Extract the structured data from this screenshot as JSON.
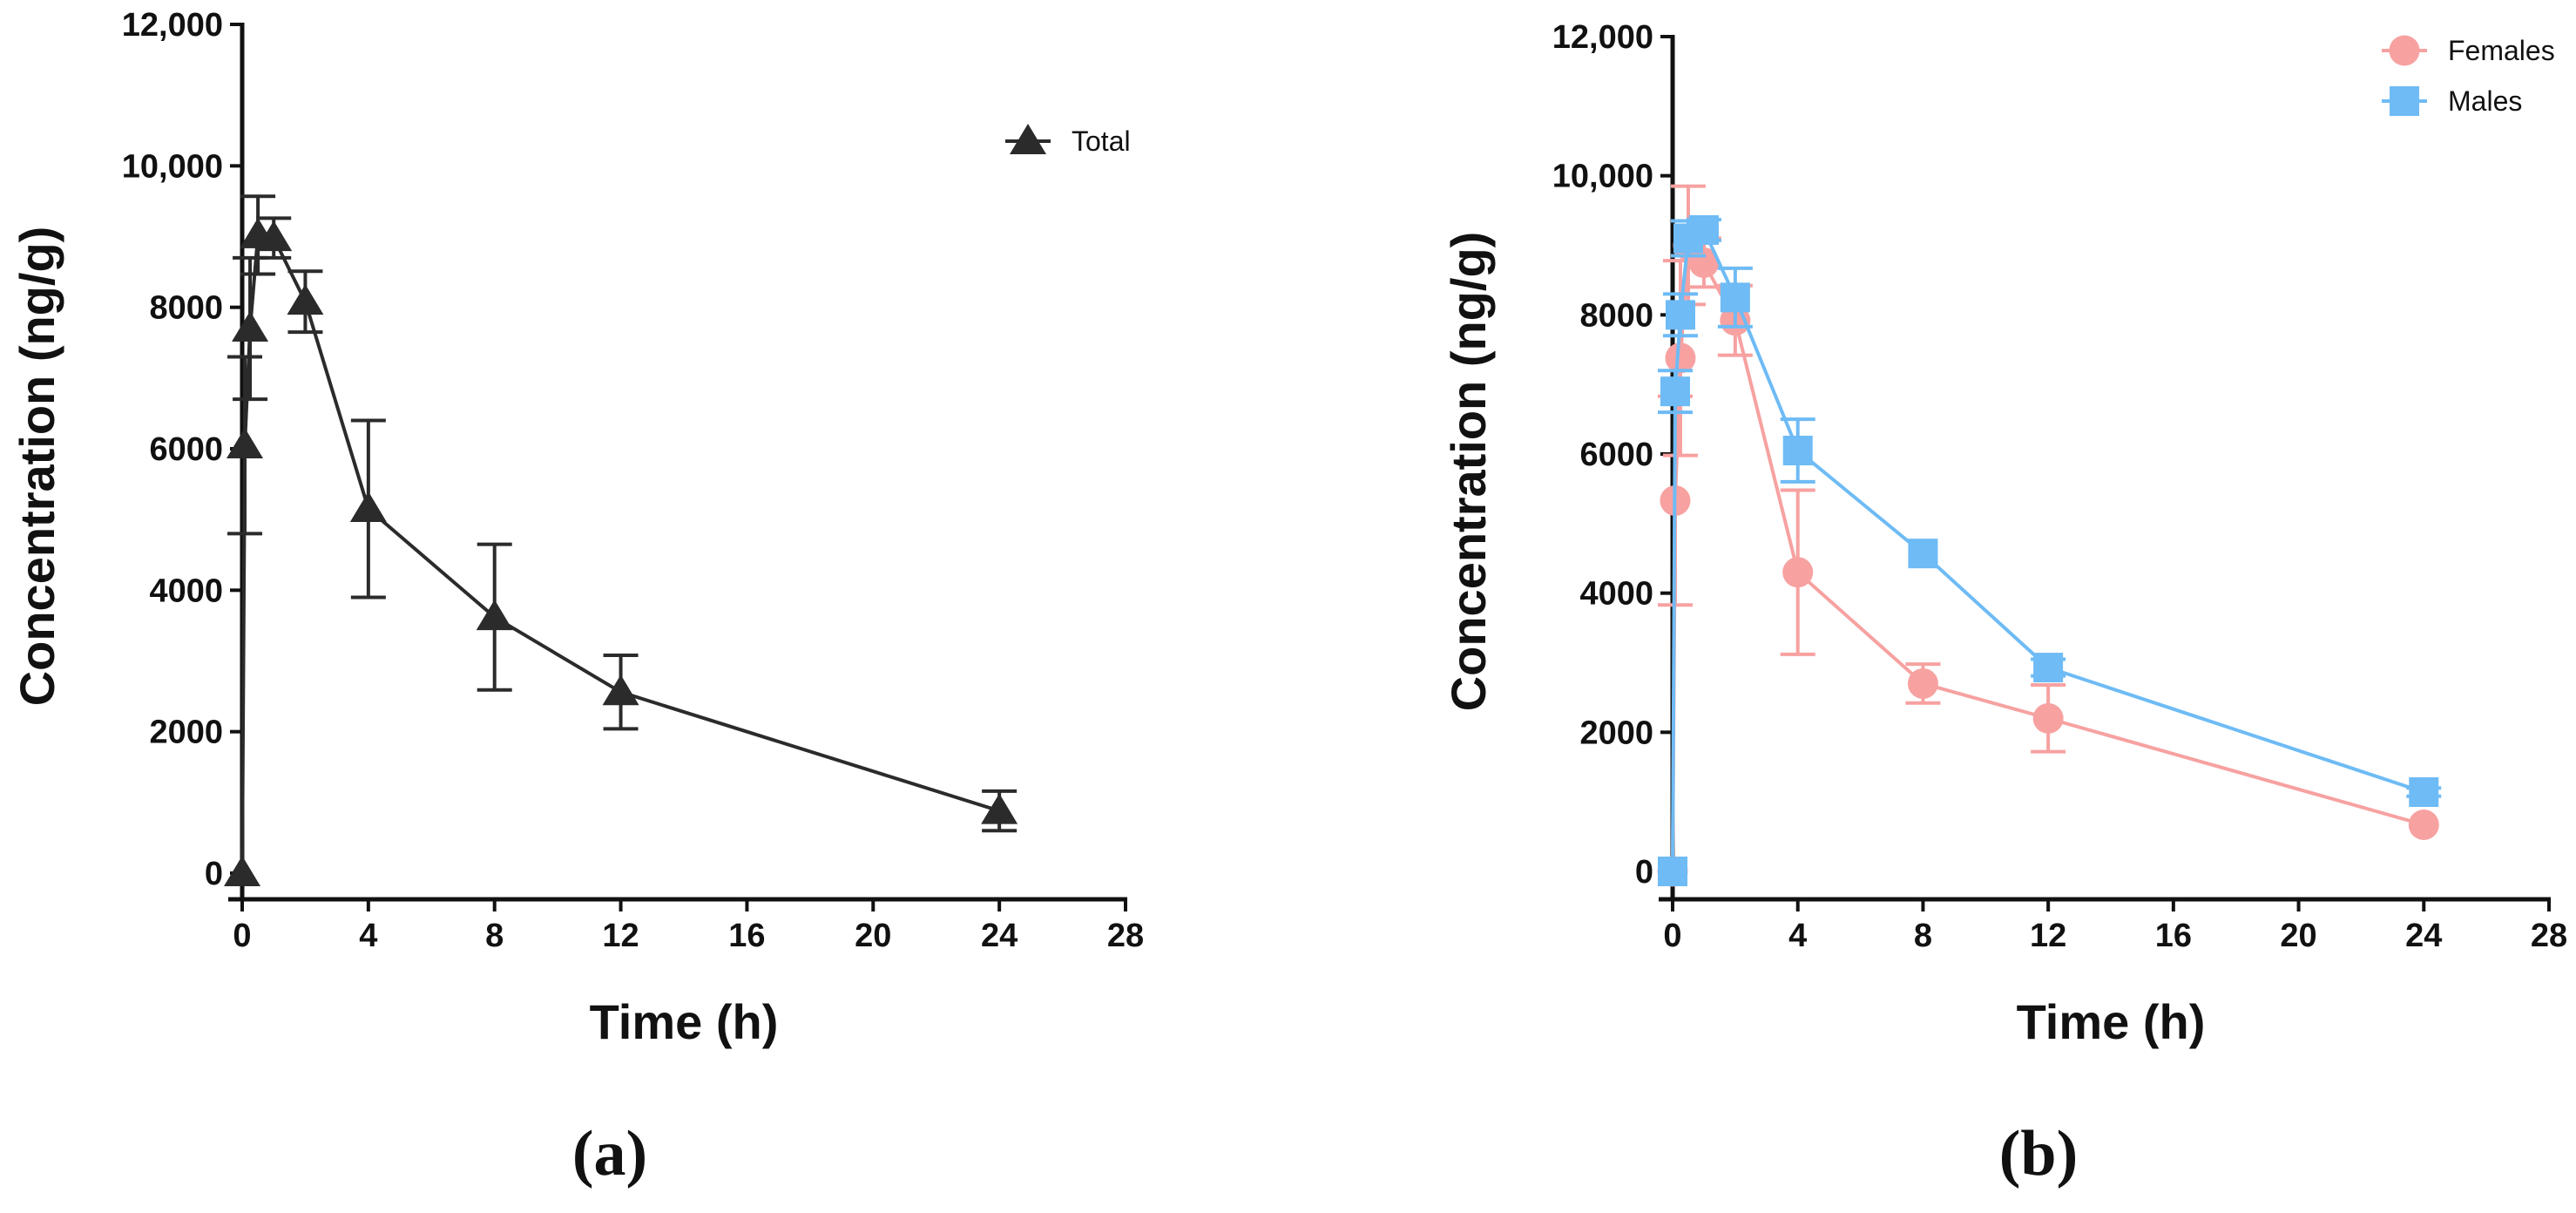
{
  "figure": {
    "panel_labels": [
      "(a)",
      "(b)"
    ]
  },
  "chart_data": [
    {
      "type": "line",
      "panel": "(a)",
      "title": "",
      "xlabel": "Time (h)",
      "ylabel": "Concentration (ng/g)",
      "xlim": [
        0,
        28
      ],
      "ylim": [
        0,
        12000
      ],
      "xticks": [
        0,
        4,
        8,
        12,
        16,
        20,
        24,
        28
      ],
      "xtick_labels": [
        "0",
        "4",
        "8",
        "12",
        "16",
        "20",
        "24",
        "28"
      ],
      "yticks": [
        0,
        2000,
        4000,
        6000,
        8000,
        10000,
        12000
      ],
      "ytick_labels": [
        "0",
        "2000",
        "4000",
        "6000",
        "8000",
        "10,000",
        "12,000"
      ],
      "grid": false,
      "legend_position": "top-right",
      "series": [
        {
          "name": "Total",
          "marker": "triangle",
          "color": "#2b2b2b",
          "x": [
            0,
            0.083,
            0.25,
            0.5,
            1,
            2,
            4,
            8,
            12,
            24
          ],
          "y": [
            0,
            6050,
            7700,
            9020,
            8980,
            8080,
            5150,
            3620,
            2560,
            880
          ],
          "err": [
            0,
            1250,
            1000,
            550,
            280,
            430,
            1250,
            1030,
            520,
            280
          ]
        }
      ]
    },
    {
      "type": "line",
      "panel": "(b)",
      "title": "",
      "xlabel": "Time (h)",
      "ylabel": "Concentration (ng/g)",
      "xlim": [
        0,
        28
      ],
      "ylim": [
        0,
        12000
      ],
      "xticks": [
        0,
        4,
        8,
        12,
        16,
        20,
        24,
        28
      ],
      "xtick_labels": [
        "0",
        "4",
        "8",
        "12",
        "16",
        "20",
        "24",
        "28"
      ],
      "yticks": [
        0,
        2000,
        4000,
        6000,
        8000,
        10000,
        12000
      ],
      "ytick_labels": [
        "0",
        "2000",
        "4000",
        "6000",
        "8000",
        "10,000",
        "12,000"
      ],
      "grid": false,
      "legend_position": "top-right",
      "series": [
        {
          "name": "Females",
          "marker": "circle",
          "color": "#f7a1a1",
          "x": [
            0,
            0.083,
            0.25,
            0.5,
            1,
            2,
            4,
            8,
            12,
            24
          ],
          "y": [
            0,
            5330,
            7380,
            9000,
            8750,
            7920,
            4300,
            2700,
            2200,
            670
          ],
          "err": [
            0,
            1500,
            1400,
            850,
            350,
            500,
            1180,
            280,
            480,
            0
          ]
        },
        {
          "name": "Males",
          "marker": "square",
          "color": "#6ebbf5",
          "x": [
            0,
            0.083,
            0.25,
            0.5,
            1,
            2,
            4,
            8,
            12,
            24
          ],
          "y": [
            0,
            6900,
            8000,
            9100,
            9220,
            8250,
            6050,
            4570,
            2930,
            1140
          ],
          "err": [
            0,
            300,
            300,
            250,
            150,
            420,
            450,
            0,
            120,
            60
          ]
        }
      ]
    }
  ]
}
